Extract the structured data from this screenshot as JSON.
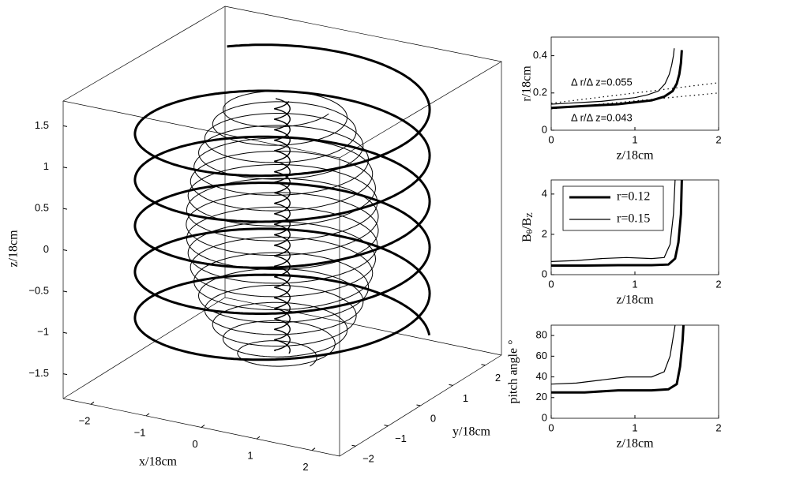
{
  "chart_data": [
    {
      "type": "line3d",
      "xlabel": "x/18cm",
      "ylabel": "y/18cm",
      "zlabel": "z/18cm",
      "xlim": [
        -2.5,
        2.5
      ],
      "ylim": [
        -2.5,
        2.5
      ],
      "zlim": [
        -1.8,
        1.8
      ],
      "xticks": [
        {
          "value": -2,
          "label": "−2"
        },
        {
          "value": -1,
          "label": "−1"
        },
        0,
        1,
        2
      ],
      "yticks": [
        {
          "value": -2,
          "label": "−2"
        },
        {
          "value": -1,
          "label": "−1"
        },
        0,
        1,
        2
      ],
      "zticks": [
        {
          "value": -1.5,
          "label": "−1.5"
        },
        {
          "value": -1,
          "label": "−1"
        },
        {
          "value": -0.5,
          "label": "−0.5"
        },
        0,
        0.5,
        1,
        1.5
      ]
    },
    {
      "type": "line",
      "xlabel": "z/18cm",
      "ylabel": "r/18cm",
      "xlim": [
        0,
        2
      ],
      "ylim": [
        0,
        0.5
      ],
      "xticks": [
        0,
        1,
        2
      ],
      "yticks": [
        0,
        0.2,
        0.4
      ],
      "annotations": [
        "Δ r/Δ z=0.055",
        "Δ r/Δ z=0.043"
      ],
      "series": [
        {
          "color": "#000000",
          "linewidth": 3,
          "x": [
            0,
            0.2,
            0.4,
            0.6,
            0.8,
            1.0,
            1.2,
            1.35,
            1.45,
            1.5,
            1.53,
            1.55,
            1.56
          ],
          "values": [
            0.12,
            0.125,
            0.13,
            0.135,
            0.14,
            0.15,
            0.16,
            0.18,
            0.21,
            0.25,
            0.3,
            0.36,
            0.43
          ]
        },
        {
          "color": "#000000",
          "linewidth": 1.2,
          "x": [
            0,
            0.2,
            0.4,
            0.6,
            0.8,
            1.0,
            1.15,
            1.28,
            1.36,
            1.41,
            1.44,
            1.46,
            1.47
          ],
          "values": [
            0.14,
            0.145,
            0.15,
            0.155,
            0.165,
            0.175,
            0.19,
            0.21,
            0.25,
            0.3,
            0.35,
            0.4,
            0.44
          ]
        },
        {
          "color": "#000000",
          "linewidth": 1.2,
          "dotted": true,
          "x": [
            0,
            2
          ],
          "values": [
            0.145,
            0.255
          ]
        },
        {
          "color": "#000000",
          "linewidth": 1.2,
          "dotted": true,
          "x": [
            0,
            2
          ],
          "values": [
            0.115,
            0.2
          ]
        }
      ]
    },
    {
      "type": "line",
      "xlabel": "z/18cm",
      "ylabel": [
        "B",
        "θ",
        "/B",
        "Z"
      ],
      "xlim": [
        0,
        2
      ],
      "ylim": [
        0,
        4.7
      ],
      "xticks": [
        0,
        1,
        2
      ],
      "yticks": [
        0,
        2,
        4
      ],
      "legend": "upper left",
      "series": [
        {
          "name": "r=0.12",
          "color": "#000000",
          "linewidth": 3,
          "x": [
            0,
            0.4,
            0.8,
            1.2,
            1.4,
            1.48,
            1.52,
            1.55,
            1.56
          ],
          "values": [
            0.45,
            0.45,
            0.47,
            0.47,
            0.5,
            0.8,
            1.6,
            3,
            4.7
          ]
        },
        {
          "name": "r=0.15",
          "color": "#000000",
          "linewidth": 1.2,
          "x": [
            0,
            0.3,
            0.6,
            0.9,
            1.2,
            1.35,
            1.42,
            1.46,
            1.48
          ],
          "values": [
            0.65,
            0.7,
            0.8,
            0.85,
            0.8,
            0.85,
            1.5,
            3,
            4.7
          ]
        }
      ]
    },
    {
      "type": "line",
      "xlabel": "z/18cm",
      "ylabel": "pitch angle °",
      "xlim": [
        0,
        2
      ],
      "ylim": [
        0,
        90
      ],
      "xticks": [
        0,
        1,
        2
      ],
      "yticks": [
        0,
        20,
        40,
        60,
        80
      ],
      "series": [
        {
          "color": "#000000",
          "linewidth": 3,
          "x": [
            0,
            0.4,
            0.8,
            1.2,
            1.4,
            1.5,
            1.54,
            1.57,
            1.58
          ],
          "values": [
            25,
            25,
            27,
            27,
            28,
            33,
            50,
            75,
            90
          ]
        },
        {
          "color": "#000000",
          "linewidth": 1.2,
          "x": [
            0,
            0.3,
            0.6,
            0.9,
            1.2,
            1.35,
            1.42,
            1.46,
            1.48
          ],
          "values": [
            33,
            34,
            37,
            40,
            40,
            45,
            60,
            80,
            90
          ]
        }
      ]
    }
  ]
}
